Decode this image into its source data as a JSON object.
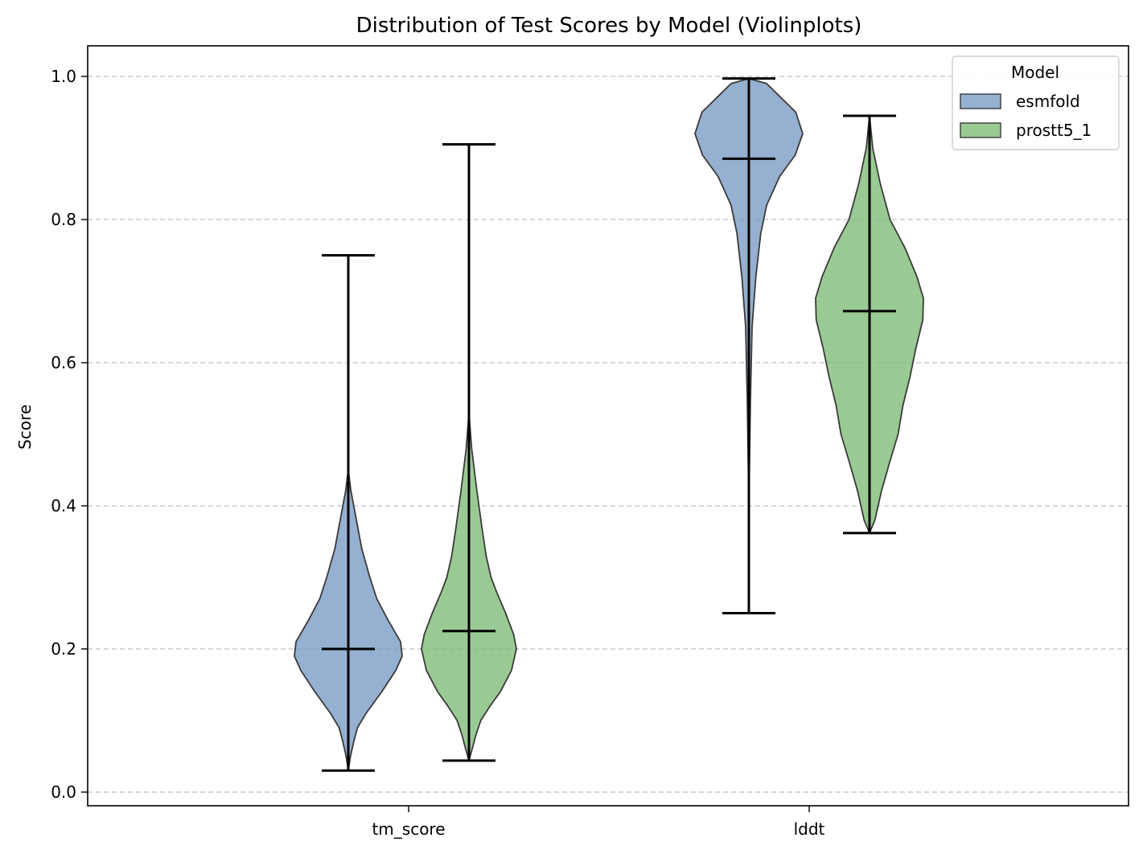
{
  "chart_data": {
    "type": "violin",
    "title": "Distribution of Test Scores by Model (Violinplots)",
    "xlabel": "",
    "ylabel": "Score",
    "categories": [
      "tm_score",
      "lddt"
    ],
    "ylim": [
      -0.02,
      1.045
    ],
    "yticks": [
      0.0,
      0.2,
      0.4,
      0.6,
      0.8,
      1.0
    ],
    "ytick_labels": [
      "0.0",
      "0.2",
      "0.4",
      "0.6",
      "0.8",
      "1.0"
    ],
    "grid": "y, dashed",
    "legend": {
      "title": "Model",
      "placement": "top-right"
    },
    "series": [
      {
        "name": "esmfold",
        "color": "#7b9cc4",
        "stats": [
          {
            "category": "tm_score",
            "min": 0.03,
            "max": 0.75,
            "mean": 0.2
          },
          {
            "category": "lddt",
            "min": 0.25,
            "max": 0.997,
            "mean": 0.885
          }
        ]
      },
      {
        "name": "prostt5_1",
        "color": "#81bd78",
        "stats": [
          {
            "category": "tm_score",
            "min": 0.044,
            "max": 0.905,
            "mean": 0.225
          },
          {
            "category": "lddt",
            "min": 0.362,
            "max": 0.945,
            "mean": 0.672
          }
        ]
      }
    ],
    "density_profiles": [
      {
        "series": "esmfold",
        "category": "tm_score",
        "profile": [
          [
            0.03,
            0.0
          ],
          [
            0.05,
            0.04
          ],
          [
            0.07,
            0.1
          ],
          [
            0.09,
            0.17
          ],
          [
            0.11,
            0.33
          ],
          [
            0.14,
            0.62
          ],
          [
            0.17,
            0.88
          ],
          [
            0.19,
            1.0
          ],
          [
            0.21,
            0.97
          ],
          [
            0.24,
            0.74
          ],
          [
            0.27,
            0.53
          ],
          [
            0.3,
            0.4
          ],
          [
            0.34,
            0.25
          ],
          [
            0.38,
            0.15
          ],
          [
            0.42,
            0.05
          ],
          [
            0.45,
            0.0
          ],
          [
            0.75,
            0.0
          ]
        ]
      },
      {
        "series": "prostt5_1",
        "category": "tm_score",
        "profile": [
          [
            0.044,
            0.0
          ],
          [
            0.06,
            0.06
          ],
          [
            0.08,
            0.13
          ],
          [
            0.1,
            0.22
          ],
          [
            0.12,
            0.39
          ],
          [
            0.14,
            0.58
          ],
          [
            0.17,
            0.79
          ],
          [
            0.2,
            0.88
          ],
          [
            0.22,
            0.83
          ],
          [
            0.25,
            0.68
          ],
          [
            0.28,
            0.51
          ],
          [
            0.3,
            0.41
          ],
          [
            0.33,
            0.32
          ],
          [
            0.37,
            0.24
          ],
          [
            0.42,
            0.15
          ],
          [
            0.48,
            0.05
          ],
          [
            0.53,
            0.0
          ],
          [
            0.905,
            0.0
          ]
        ]
      },
      {
        "series": "esmfold",
        "category": "lddt",
        "profile": [
          [
            0.25,
            0.0
          ],
          [
            0.4,
            0.0
          ],
          [
            0.55,
            0.03
          ],
          [
            0.65,
            0.06
          ],
          [
            0.72,
            0.13
          ],
          [
            0.78,
            0.22
          ],
          [
            0.82,
            0.33
          ],
          [
            0.86,
            0.57
          ],
          [
            0.89,
            0.86
          ],
          [
            0.92,
            1.0
          ],
          [
            0.95,
            0.87
          ],
          [
            0.97,
            0.6
          ],
          [
            0.99,
            0.33
          ],
          [
            0.997,
            0.0
          ]
        ]
      },
      {
        "series": "prostt5_1",
        "category": "lddt",
        "profile": [
          [
            0.362,
            0.0
          ],
          [
            0.38,
            0.1
          ],
          [
            0.42,
            0.22
          ],
          [
            0.46,
            0.37
          ],
          [
            0.5,
            0.53
          ],
          [
            0.54,
            0.62
          ],
          [
            0.58,
            0.75
          ],
          [
            0.62,
            0.86
          ],
          [
            0.66,
            0.99
          ],
          [
            0.69,
            1.0
          ],
          [
            0.72,
            0.88
          ],
          [
            0.76,
            0.66
          ],
          [
            0.8,
            0.38
          ],
          [
            0.85,
            0.2
          ],
          [
            0.9,
            0.06
          ],
          [
            0.945,
            0.0
          ]
        ]
      }
    ]
  }
}
